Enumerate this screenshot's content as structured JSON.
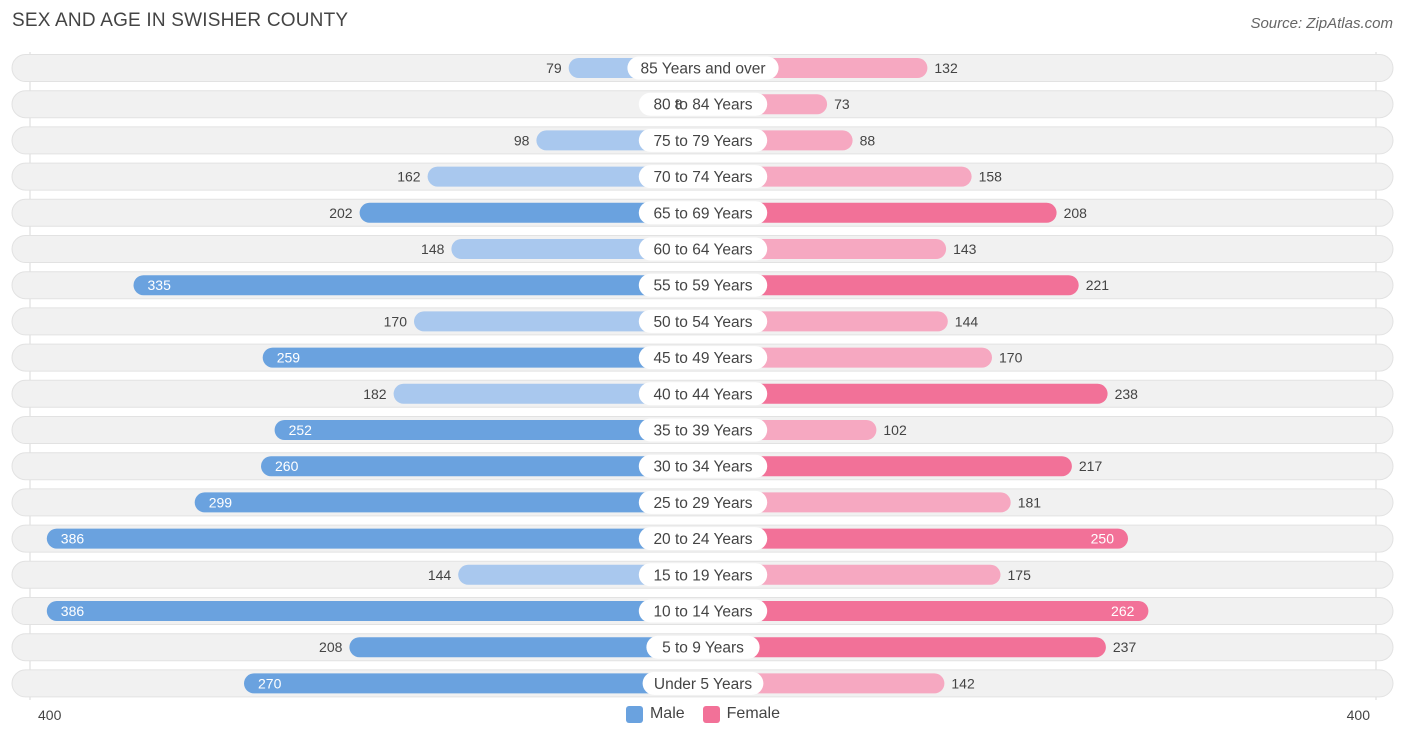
{
  "title": "SEX AND AGE IN SWISHER COUNTY",
  "source": "Source: ZipAtlas.com",
  "colors": {
    "male": "#6aa2df",
    "male_light": "#a9c8ee",
    "female": "#f27198",
    "female_light": "#f6a8c1"
  },
  "legend": {
    "male": "Male",
    "female": "Female"
  },
  "axis": {
    "left": "400",
    "right": "400"
  },
  "chart_data": {
    "type": "bar",
    "orientation": "horizontal-diverging",
    "title": "SEX AND AGE IN SWISHER COUNTY",
    "xlim": [
      -400,
      400
    ],
    "categories": [
      "85 Years and over",
      "80 to 84 Years",
      "75 to 79 Years",
      "70 to 74 Years",
      "65 to 69 Years",
      "60 to 64 Years",
      "55 to 59 Years",
      "50 to 54 Years",
      "45 to 49 Years",
      "40 to 44 Years",
      "35 to 39 Years",
      "30 to 34 Years",
      "25 to 29 Years",
      "20 to 24 Years",
      "15 to 19 Years",
      "10 to 14 Years",
      "5 to 9 Years",
      "Under 5 Years"
    ],
    "series": [
      {
        "name": "Male",
        "values": [
          79,
          8,
          98,
          162,
          202,
          148,
          335,
          170,
          259,
          182,
          252,
          260,
          299,
          386,
          144,
          386,
          208,
          270
        ]
      },
      {
        "name": "Female",
        "values": [
          132,
          73,
          88,
          158,
          208,
          143,
          221,
          144,
          170,
          238,
          102,
          217,
          181,
          250,
          175,
          262,
          237,
          142
        ]
      }
    ],
    "legend_position": "bottom-center"
  }
}
